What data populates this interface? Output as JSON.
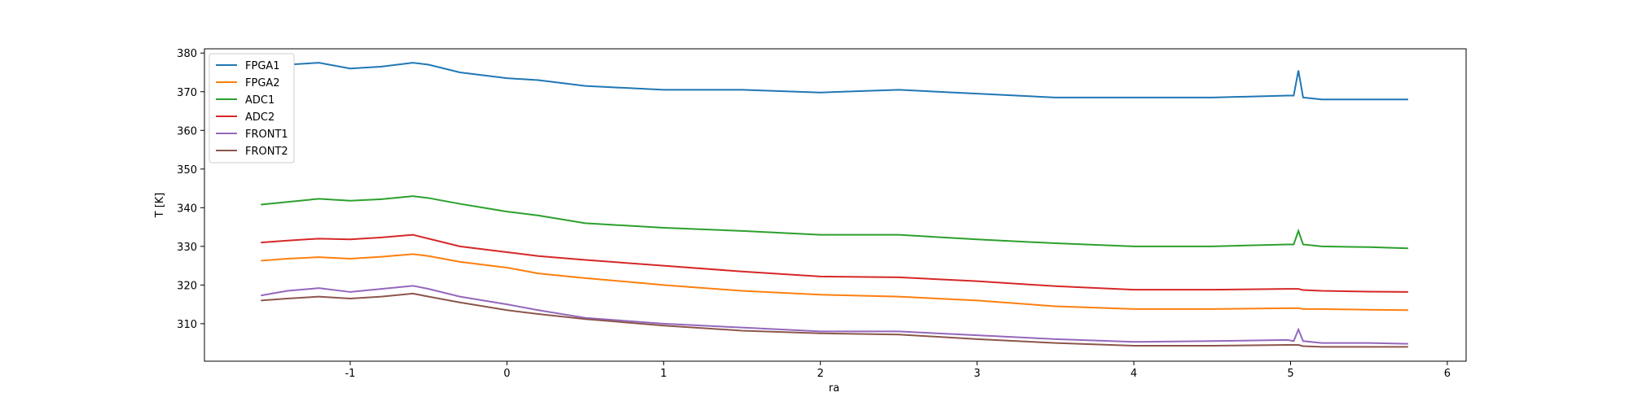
{
  "chart_data": {
    "type": "line",
    "x_label": "ra",
    "y_label": "T [K]",
    "x": [
      -1.57,
      -1.4,
      -1.2,
      -1.0,
      -0.8,
      -0.6,
      -0.5,
      -0.3,
      0,
      0.2,
      0.5,
      1.0,
      1.5,
      2.0,
      2.5,
      3.0,
      3.5,
      4.0,
      4.5,
      4.98,
      5.02,
      5.05,
      5.08,
      5.2,
      5.5,
      5.75
    ],
    "series": [
      {
        "name": "FPGA1",
        "color": "#1f77b4",
        "values": [
          377,
          377,
          377.5,
          376,
          376.5,
          377.5,
          377,
          375,
          373.5,
          373,
          371.5,
          370.5,
          370.5,
          369.8,
          370.5,
          369.5,
          368.5,
          368.5,
          368.5,
          369,
          369,
          375.5,
          368.5,
          368,
          368,
          368
        ]
      },
      {
        "name": "FPGA2",
        "color": "#ff7f0e",
        "values": [
          326.3,
          326.8,
          327.2,
          326.8,
          327.3,
          328,
          327.5,
          326,
          324.5,
          323,
          321.8,
          320,
          318.5,
          317.5,
          317,
          316,
          314.5,
          313.8,
          313.8,
          314,
          314,
          314,
          313.8,
          313.8,
          313.6,
          313.5
        ]
      },
      {
        "name": "ADC1",
        "color": "#2ca02c",
        "values": [
          340.8,
          341.5,
          342.3,
          341.8,
          342.2,
          343,
          342.5,
          341,
          339,
          338,
          336,
          334.8,
          334,
          333,
          333,
          331.8,
          330.8,
          330,
          330,
          330.5,
          330.5,
          334,
          330.5,
          330,
          329.8,
          329.5
        ]
      },
      {
        "name": "ADC2",
        "color": "#d62728",
        "values": [
          331,
          331.5,
          332,
          331.8,
          332.3,
          333,
          332,
          330,
          328.5,
          327.5,
          326.5,
          325,
          323.5,
          322.2,
          322,
          321,
          319.7,
          318.8,
          318.8,
          319,
          319,
          319,
          318.7,
          318.5,
          318.3,
          318.2
        ]
      },
      {
        "name": "FRONT1",
        "color": "#9467bd",
        "values": [
          317.3,
          318.5,
          319.2,
          318.2,
          319,
          319.8,
          319,
          317,
          315,
          313.5,
          311.5,
          310,
          309,
          308,
          308,
          307,
          306,
          305.3,
          305.5,
          305.8,
          305.5,
          308.5,
          305.5,
          305,
          305,
          304.8
        ]
      },
      {
        "name": "FRONT2",
        "color": "#8c564b",
        "values": [
          316,
          316.5,
          317,
          316.5,
          317,
          317.8,
          317,
          315.5,
          313.5,
          312.5,
          311.2,
          309.5,
          308.2,
          307.5,
          307.2,
          306,
          305,
          304.3,
          304.3,
          304.5,
          304.5,
          304.5,
          304.2,
          304,
          304,
          304
        ]
      }
    ],
    "xlim": [
      -1.93,
      6.12
    ],
    "xticks": [
      -1,
      0,
      1,
      2,
      3,
      4,
      5,
      6
    ],
    "ylim": [
      300.3,
      381.1
    ],
    "yticks": [
      310,
      320,
      330,
      340,
      350,
      360,
      370,
      380
    ],
    "legend": "upper left",
    "grid": false
  }
}
